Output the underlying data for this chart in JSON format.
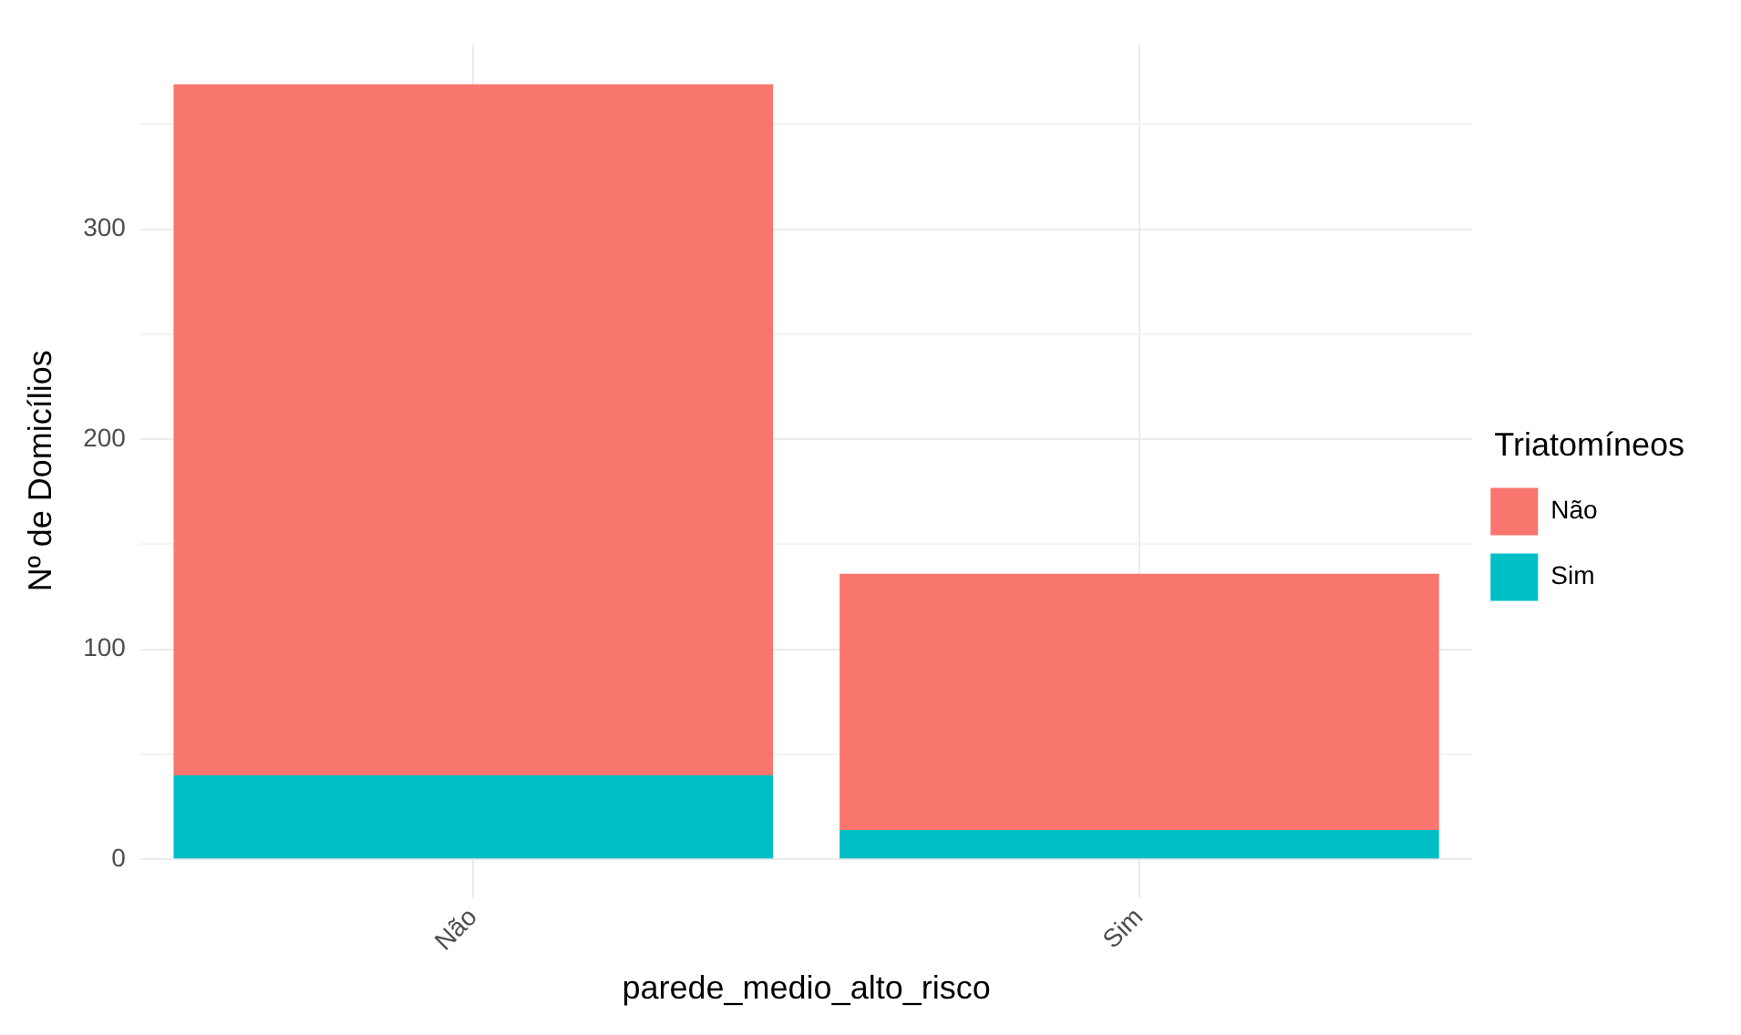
{
  "chart_data": {
    "type": "bar",
    "xlabel": "parede_medio_alto_risco",
    "ylabel": "Nº de Domicílios",
    "legend_title": "Triatomíneos",
    "categories": [
      "Não",
      "Sim"
    ],
    "stacked": true,
    "series": [
      {
        "name": "Sim",
        "color": "#00bfc4",
        "values": [
          40,
          14
        ]
      },
      {
        "name": "Não",
        "color": "#f8766d",
        "values": [
          329,
          122
        ]
      }
    ],
    "ylim": [
      -18,
      388
    ],
    "yticks": [
      0,
      {
        "value": 50,
        "label": null
      },
      100,
      {
        "value": 150,
        "label": null
      },
      200,
      {
        "value": 250,
        "label": null
      },
      300,
      {
        "value": 350,
        "label": null
      }
    ],
    "grid": true,
    "legend": "right"
  }
}
